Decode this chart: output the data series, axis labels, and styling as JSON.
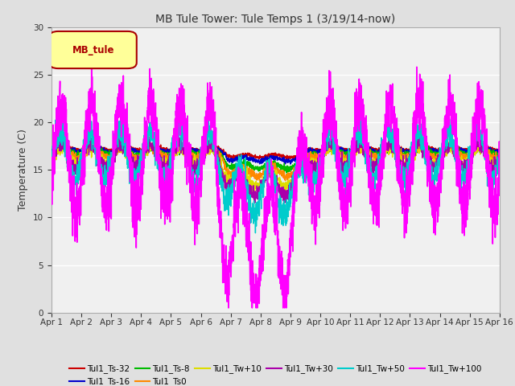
{
  "title": "MB Tule Tower: Tule Temps 1 (3/19/14-now)",
  "ylabel": "Temperature (C)",
  "xlabel": "",
  "ylim": [
    0,
    30
  ],
  "yticks": [
    0,
    5,
    10,
    15,
    20,
    25,
    30
  ],
  "x_labels": [
    "Apr 1",
    "Apr 2",
    "Apr 3",
    "Apr 4",
    "Apr 5",
    "Apr 6",
    "Apr 7",
    "Apr 8",
    "Apr 9",
    "Apr 10",
    "Apr 11",
    "Apr 12",
    "Apr 13",
    "Apr 14",
    "Apr 15",
    "Apr 16"
  ],
  "background_color": "#e0e0e0",
  "plot_bg_color": "#f0f0f0",
  "legend_box_color": "#ffff99",
  "legend_box_edge": "#aa0000",
  "legend_box_text": "MB_tule",
  "series": [
    {
      "label": "Tul1_Ts-32",
      "color": "#cc0000",
      "lw": 1.0
    },
    {
      "label": "Tul1_Ts-16",
      "color": "#0000cc",
      "lw": 1.0
    },
    {
      "label": "Tul1_Ts-8",
      "color": "#00bb00",
      "lw": 1.0
    },
    {
      "label": "Tul1_Ts0",
      "color": "#ff8800",
      "lw": 1.0
    },
    {
      "label": "Tul1_Tw+10",
      "color": "#dddd00",
      "lw": 1.0
    },
    {
      "label": "Tul1_Tw+30",
      "color": "#aa00aa",
      "lw": 1.0
    },
    {
      "label": "Tul1_Tw+50",
      "color": "#00cccc",
      "lw": 1.0
    },
    {
      "label": "Tul1_Tw+100",
      "color": "#ff00ff",
      "lw": 1.2
    }
  ],
  "grid_color": "#ffffff",
  "grid_alpha": 1.0
}
